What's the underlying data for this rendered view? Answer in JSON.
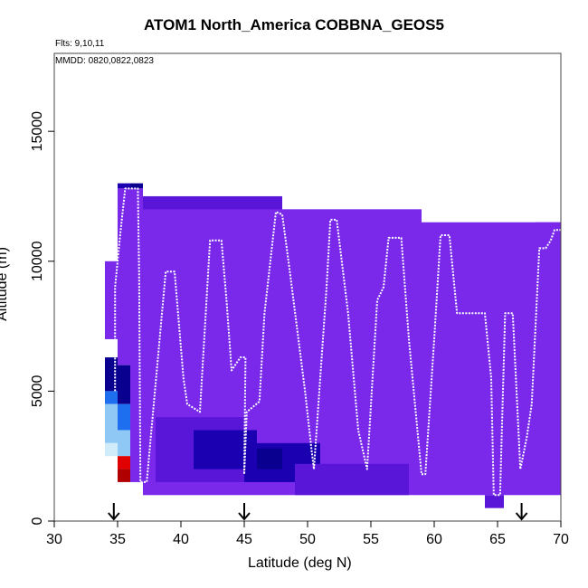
{
  "title": "ATOM1 North_America COBBNA_GEOS5",
  "note_flights": "Flts: 9,10,11",
  "note_dates": "MMDD: 0820,0822,0823",
  "colors": {
    "background_purple": "#7a28ea",
    "deep_purple": "#5a16d8",
    "navy": "#1a00b0",
    "dark_navy": "#0a0090",
    "blue": "#1e6ff0",
    "light_blue": "#8fc8f4",
    "pale_blue": "#d0ecfb",
    "red": "#e00000",
    "dark_red": "#b00000",
    "track": "#ffffff",
    "axis": "#000000"
  },
  "chart_data": {
    "type": "heatmap",
    "title": "ATOM1 North_America COBBNA_GEOS5",
    "xlabel": "Latitude (deg N)",
    "ylabel": "Altitude (m)",
    "xlim": [
      30,
      70
    ],
    "ylim": [
      0,
      18000
    ],
    "xticks": [
      30,
      35,
      40,
      45,
      50,
      55,
      60,
      65,
      70
    ],
    "yticks": [
      0,
      5000,
      10000,
      15000
    ],
    "grid": false,
    "field_regions": [
      {
        "lat": [
          34.0,
          35.0
        ],
        "alt": [
          7000,
          10000
        ],
        "color": "background_purple"
      },
      {
        "lat": [
          34.0,
          35.0
        ],
        "alt": [
          5000,
          6300
        ],
        "color": "dark_navy"
      },
      {
        "lat": [
          34.0,
          35.0
        ],
        "alt": [
          4500,
          5000
        ],
        "color": "blue"
      },
      {
        "lat": [
          34.0,
          35.0
        ],
        "alt": [
          3000,
          4500
        ],
        "color": "light_blue"
      },
      {
        "lat": [
          34.0,
          35.0
        ],
        "alt": [
          2500,
          3000
        ],
        "color": "pale_blue"
      },
      {
        "lat": [
          35.0,
          36.0
        ],
        "alt": [
          12800,
          13000
        ],
        "color": "navy"
      },
      {
        "lat": [
          35.0,
          36.0
        ],
        "alt": [
          6000,
          12800
        ],
        "color": "background_purple"
      },
      {
        "lat": [
          35.0,
          36.0
        ],
        "alt": [
          4500,
          6000
        ],
        "color": "dark_navy"
      },
      {
        "lat": [
          35.0,
          36.0
        ],
        "alt": [
          3500,
          4500
        ],
        "color": "blue"
      },
      {
        "lat": [
          35.0,
          36.0
        ],
        "alt": [
          2500,
          3500
        ],
        "color": "light_blue"
      },
      {
        "lat": [
          35.0,
          36.0
        ],
        "alt": [
          2000,
          2500
        ],
        "color": "red"
      },
      {
        "lat": [
          35.0,
          36.0
        ],
        "alt": [
          1500,
          2000
        ],
        "color": "dark_red"
      },
      {
        "lat": [
          36.0,
          37.0
        ],
        "alt": [
          12800,
          13000
        ],
        "color": "dark_navy"
      },
      {
        "lat": [
          36.0,
          37.0
        ],
        "alt": [
          1500,
          12800
        ],
        "color": "background_purple"
      },
      {
        "lat": [
          37.0,
          48.0
        ],
        "alt": [
          1000,
          12500
        ],
        "color": "background_purple"
      },
      {
        "lat": [
          48.0,
          59.0
        ],
        "alt": [
          1000,
          12000
        ],
        "color": "background_purple"
      },
      {
        "lat": [
          59.0,
          70.0
        ],
        "alt": [
          1000,
          11500
        ],
        "color": "background_purple"
      },
      {
        "lat": [
          37.0,
          48.0
        ],
        "alt": [
          12000,
          12500
        ],
        "color": "deep_purple"
      },
      {
        "lat": [
          38.0,
          45.0
        ],
        "alt": [
          1500,
          4000
        ],
        "color": "deep_purple"
      },
      {
        "lat": [
          41.0,
          46.0
        ],
        "alt": [
          2000,
          3500
        ],
        "color": "navy"
      },
      {
        "lat": [
          45.0,
          51.0
        ],
        "alt": [
          1500,
          3000
        ],
        "color": "navy"
      },
      {
        "lat": [
          46.0,
          48.0
        ],
        "alt": [
          2000,
          2800
        ],
        "color": "dark_navy"
      },
      {
        "lat": [
          49.0,
          58.0
        ],
        "alt": [
          1000,
          2200
        ],
        "color": "deep_purple"
      },
      {
        "lat": [
          64.0,
          65.5
        ],
        "alt": [
          500,
          1000
        ],
        "color": "deep_purple"
      },
      {
        "lat": [
          68.0,
          70.0
        ],
        "alt": [
          10500,
          11500
        ],
        "color": "background_purple"
      }
    ],
    "flight_track": [
      [
        34.8,
        5000
      ],
      [
        34.8,
        9000
      ],
      [
        35.2,
        11000
      ],
      [
        35.6,
        12800
      ],
      [
        36.6,
        12800
      ],
      [
        36.7,
        9500
      ],
      [
        36.8,
        1500
      ],
      [
        37.3,
        1500
      ],
      [
        38.8,
        9600
      ],
      [
        39.5,
        9600
      ],
      [
        40.2,
        5500
      ],
      [
        40.5,
        4500
      ],
      [
        41.5,
        4200
      ],
      [
        42.3,
        10800
      ],
      [
        43.2,
        10800
      ],
      [
        43.6,
        8500
      ],
      [
        44.0,
        5800
      ],
      [
        44.7,
        6300
      ],
      [
        45.1,
        6300
      ],
      [
        45.0,
        1800
      ],
      [
        45.2,
        4200
      ],
      [
        46.2,
        4600
      ],
      [
        46.6,
        8000
      ],
      [
        47.5,
        11900
      ],
      [
        48.0,
        11800
      ],
      [
        48.6,
        9600
      ],
      [
        49.8,
        5000
      ],
      [
        50.3,
        2800
      ],
      [
        50.5,
        2000
      ],
      [
        51.5,
        9000
      ],
      [
        51.8,
        11600
      ],
      [
        52.3,
        11600
      ],
      [
        53.2,
        8000
      ],
      [
        54.0,
        3500
      ],
      [
        54.7,
        2000
      ],
      [
        55.5,
        8500
      ],
      [
        56.0,
        9000
      ],
      [
        56.4,
        10900
      ],
      [
        57.4,
        10900
      ],
      [
        58.0,
        7000
      ],
      [
        59.0,
        1800
      ],
      [
        59.3,
        1800
      ],
      [
        60.0,
        7000
      ],
      [
        60.5,
        11000
      ],
      [
        61.2,
        11000
      ],
      [
        61.8,
        8000
      ],
      [
        63.0,
        8000
      ],
      [
        64.0,
        8000
      ],
      [
        64.5,
        5500
      ],
      [
        64.7,
        1000
      ],
      [
        65.2,
        1000
      ],
      [
        65.6,
        8000
      ],
      [
        66.2,
        8000
      ],
      [
        66.8,
        2000
      ],
      [
        67.3,
        3200
      ],
      [
        67.7,
        4500
      ],
      [
        68.3,
        10500
      ],
      [
        68.8,
        10500
      ],
      [
        69.2,
        10800
      ],
      [
        69.5,
        11200
      ],
      [
        70.0,
        11200
      ]
    ],
    "arrow_markers": [
      34.7,
      45.0,
      66.9
    ]
  }
}
